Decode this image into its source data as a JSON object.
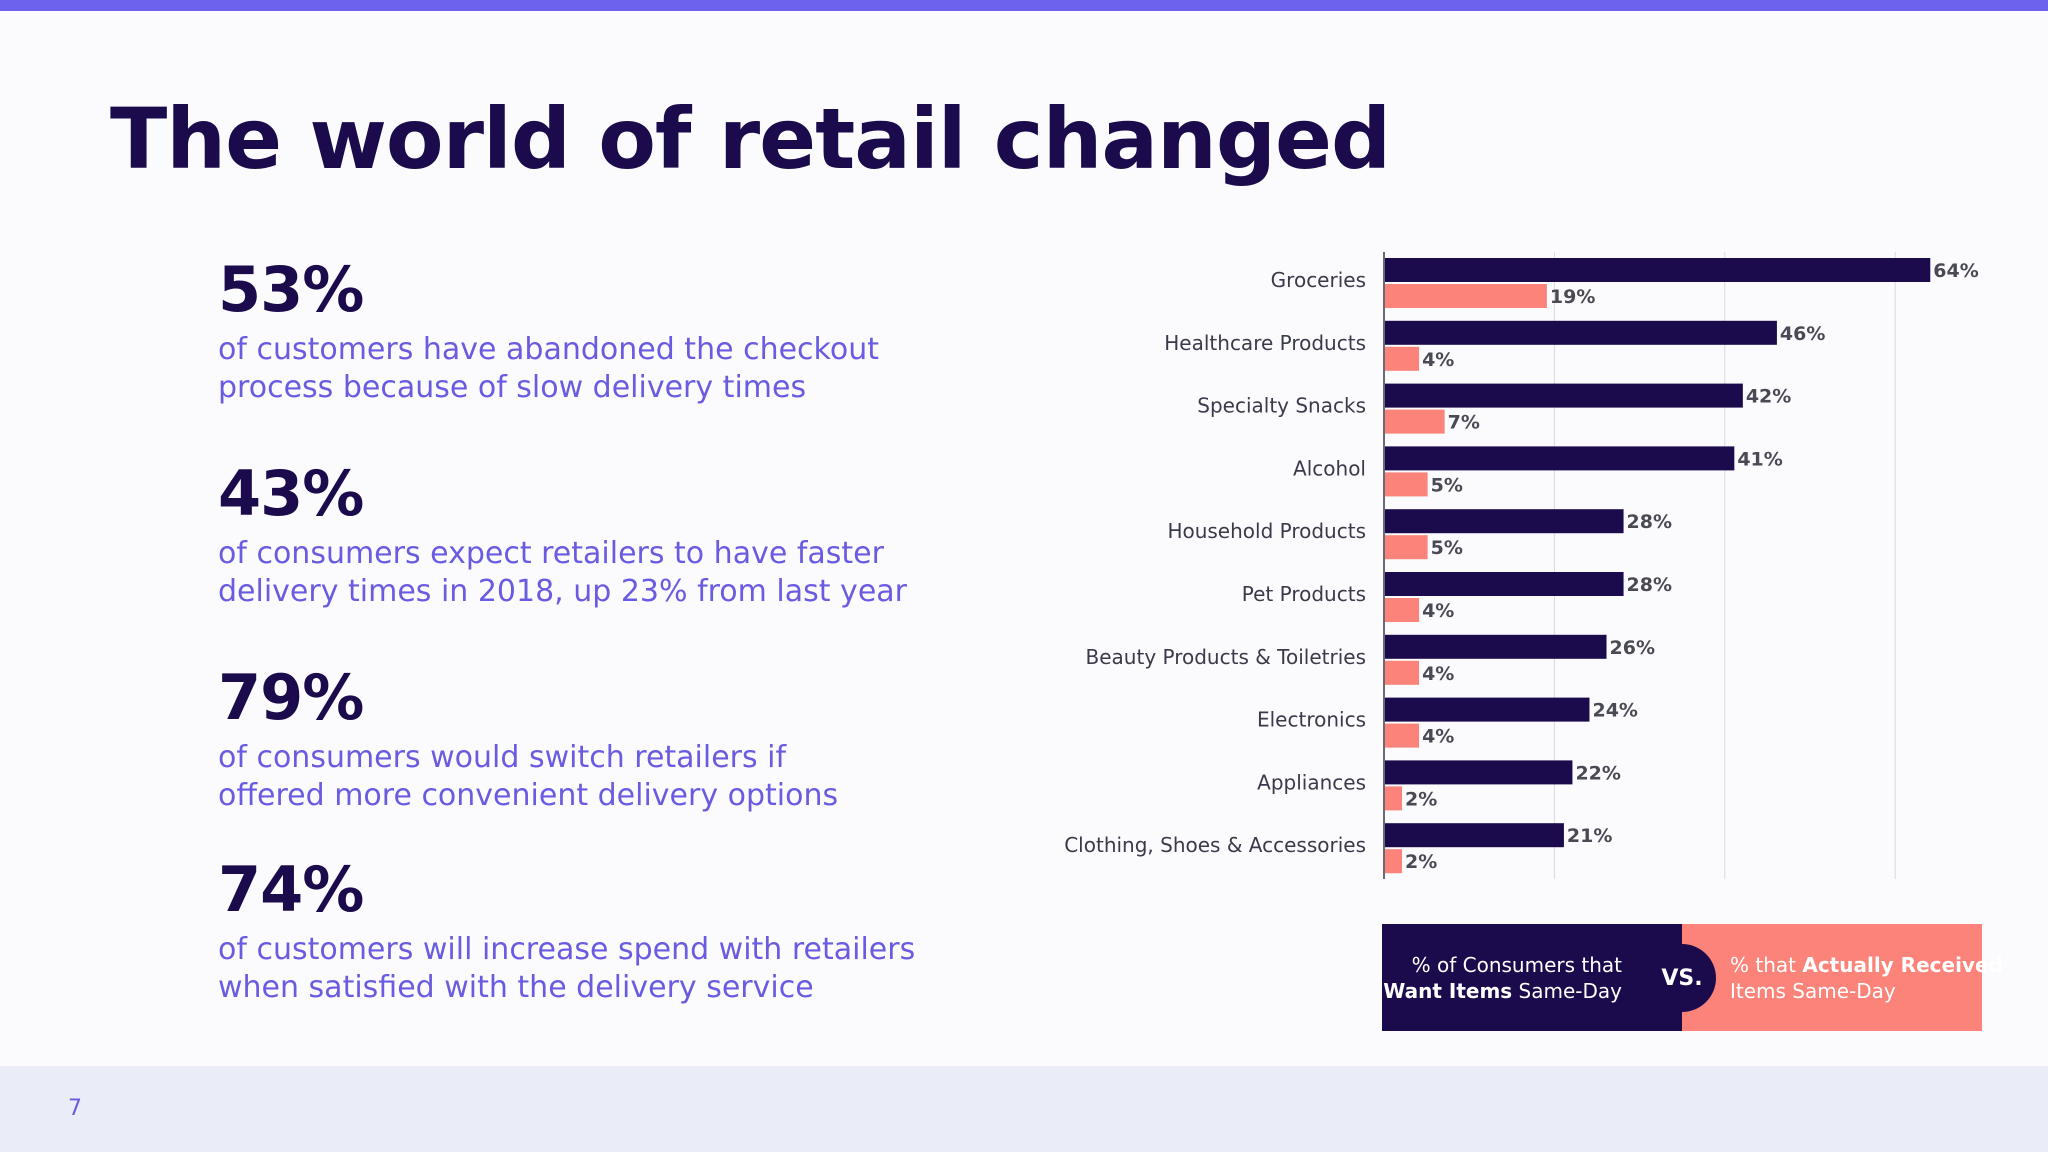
{
  "slide": {
    "title": "The world of retail changed",
    "page_number": "7"
  },
  "stats": [
    {
      "value": "53%",
      "description": "of customers have abandoned the checkout\nprocess because of slow delivery times"
    },
    {
      "value": "43%",
      "description": "of consumers expect retailers to have faster\ndelivery times in 2018, up 23% from last year"
    },
    {
      "value": "79%",
      "description": "of consumers would switch retailers if\noffered more convenient delivery options"
    },
    {
      "value": "74%",
      "description": "of customers will increase spend with retailers\nwhen satisfied with the delivery service"
    }
  ],
  "legend": {
    "left_line1": "% of Consumers that",
    "left_line2_bold": "Want Items",
    "left_line2_rest": " Same-Day",
    "vs": "VS.",
    "right_line1_prefix": "% that ",
    "right_line1_bold": "Actually Received",
    "right_line2": "Items Same-Day"
  },
  "colors": {
    "dark": "#1c0b4c",
    "coral": "#fb8379",
    "accent": "#6d62ee",
    "text_purple": "#6a5ce0"
  },
  "chart_data": {
    "type": "bar",
    "orientation": "horizontal",
    "categories": [
      "Groceries",
      "Healthcare Products",
      "Specialty Snacks",
      "Alcohol",
      "Household Products",
      "Pet Products",
      "Beauty Products & Toiletries",
      "Electronics",
      "Appliances",
      "Clothing, Shoes & Accessories"
    ],
    "series": [
      {
        "name": "% of Consumers that Want Items Same-Day",
        "color": "#1c0b4c",
        "values": [
          64,
          46,
          42,
          41,
          28,
          28,
          26,
          24,
          22,
          21
        ]
      },
      {
        "name": "% that Actually Received Items Same-Day",
        "color": "#fb8379",
        "values": [
          19,
          4,
          7,
          5,
          5,
          4,
          4,
          4,
          2,
          2
        ]
      }
    ],
    "value_suffix": "%",
    "xlim": [
      0,
      70
    ],
    "grid": true,
    "legend_position": "bottom"
  }
}
